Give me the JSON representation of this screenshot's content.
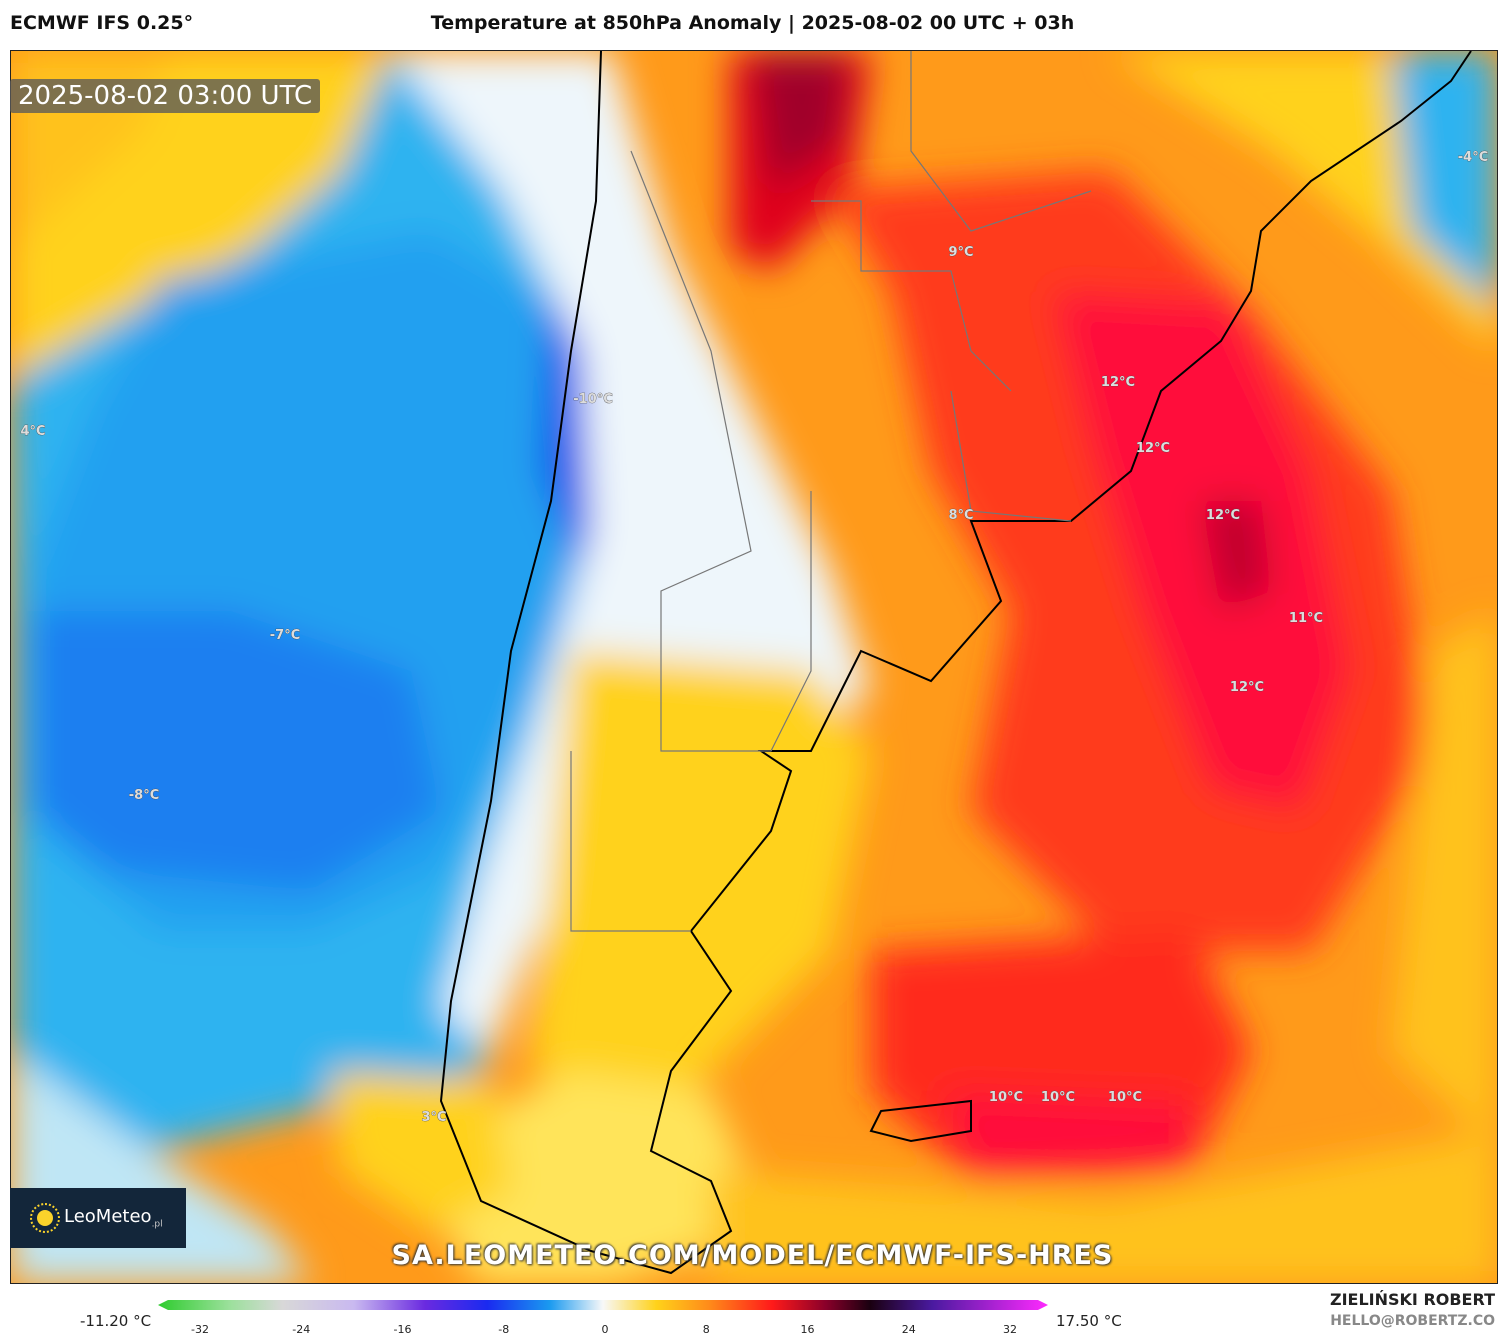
{
  "header": {
    "model": "ECMWF IFS 0.25°",
    "title": "Temperature at 850hPa Anomaly | 2025-08-02 00 UTC + 03h"
  },
  "map": {
    "valid_time": "2025-08-02 03:00 UTC",
    "watermark": "SA.LEOMETEO.COM/MODEL/ECMWF-IFS-HRES",
    "logo": {
      "brand": "LeoMeteo",
      "suffix": ".pl"
    },
    "labels": [
      {
        "text": "-4°C"
      },
      {
        "text": "4°C"
      },
      {
        "text": "-10°C"
      },
      {
        "text": "-7°C"
      },
      {
        "text": "-8°C"
      },
      {
        "text": "3°C"
      },
      {
        "text": "9°C"
      },
      {
        "text": "8°C"
      },
      {
        "text": "12°C"
      },
      {
        "text": "12°C"
      },
      {
        "text": "12°C"
      },
      {
        "text": "11°C"
      },
      {
        "text": "12°C"
      },
      {
        "text": "10°C"
      },
      {
        "text": "10°C"
      },
      {
        "text": "10°C"
      }
    ]
  },
  "colorbar": {
    "min_label": "-11.20 °C",
    "max_label": "17.50 °C",
    "ticks": [
      "-32",
      "-24",
      "-16",
      "-8",
      "0",
      "8",
      "16",
      "24",
      "32"
    ]
  },
  "credits": {
    "author": "ZIELIŃSKI ROBERT",
    "email": "HELLO@ROBERTZ.CO"
  }
}
